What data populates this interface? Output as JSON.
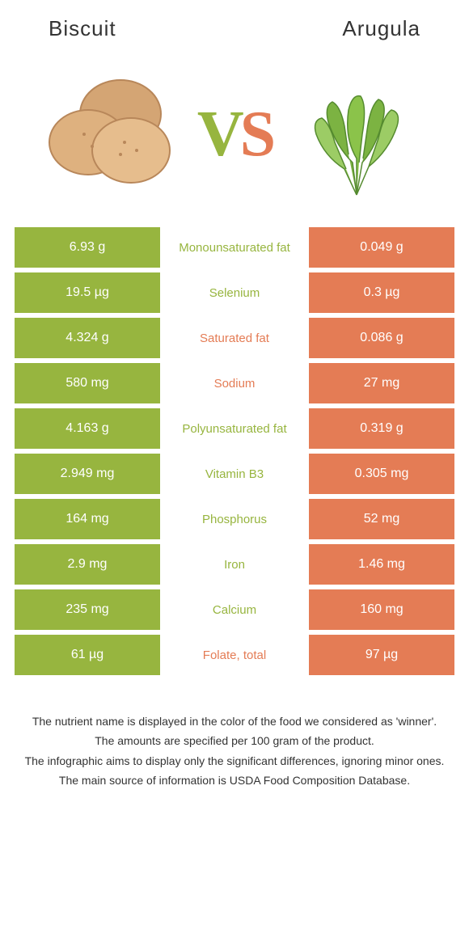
{
  "header": {
    "left_title": "Biscuit",
    "right_title": "Arugula"
  },
  "vs": {
    "v": "V",
    "s": "S"
  },
  "colors": {
    "left": "#97b53f",
    "right": "#e47c55",
    "background": "#ffffff"
  },
  "icons": {
    "left": "biscuit-illustration",
    "right": "arugula-illustration"
  },
  "table": {
    "rows": [
      {
        "left": "6.93 g",
        "label": "Monounsaturated fat",
        "right": "0.049 g",
        "winner": "left"
      },
      {
        "left": "19.5 µg",
        "label": "Selenium",
        "right": "0.3 µg",
        "winner": "left"
      },
      {
        "left": "4.324 g",
        "label": "Saturated fat",
        "right": "0.086 g",
        "winner": "right"
      },
      {
        "left": "580 mg",
        "label": "Sodium",
        "right": "27 mg",
        "winner": "right"
      },
      {
        "left": "4.163 g",
        "label": "Polyunsaturated fat",
        "right": "0.319 g",
        "winner": "left"
      },
      {
        "left": "2.949 mg",
        "label": "Vitamin B3",
        "right": "0.305 mg",
        "winner": "left"
      },
      {
        "left": "164 mg",
        "label": "Phosphorus",
        "right": "52 mg",
        "winner": "left"
      },
      {
        "left": "2.9 mg",
        "label": "Iron",
        "right": "1.46 mg",
        "winner": "left"
      },
      {
        "left": "235 mg",
        "label": "Calcium",
        "right": "160 mg",
        "winner": "left"
      },
      {
        "left": "61 µg",
        "label": "Folate, total",
        "right": "97 µg",
        "winner": "right"
      }
    ]
  },
  "footnotes": [
    "The nutrient name is displayed in the color of the food we considered as 'winner'.",
    "The amounts are specified per 100 gram of the product.",
    "The infographic aims to display only the significant differences, ignoring minor ones.",
    "The main source of information is USDA Food Composition Database."
  ]
}
